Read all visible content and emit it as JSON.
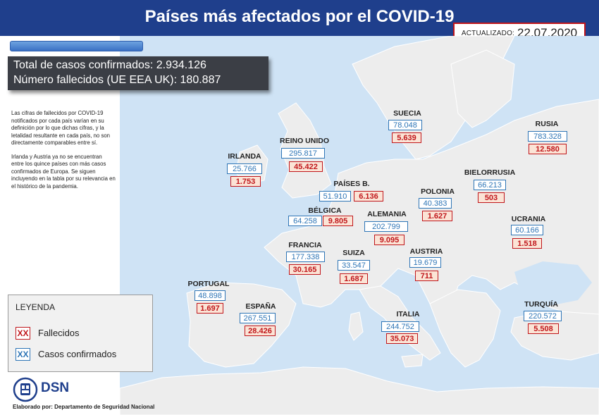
{
  "header": {
    "title": "Países más afectados por el COVID-19",
    "update_label": "ACTUALIZADO:",
    "update_date": "22.07.2020"
  },
  "totals": {
    "confirmed": "Total de casos confirmados: 2.934.126",
    "deaths": "Número fallecidos (UE EEA UK): 180.887"
  },
  "notes": {
    "p1": "Las cifras de fallecidos por COVID-19 notificados por cada país varían en su definición por lo que dichas cifras, y la letalidad resultante en cada país, no son directamente comparables entre sí.",
    "p2": "Irlanda y Austria ya no se encuentran entre los quince países con más casos confirmados de Europa. Se siguen incluyendo en la tabla por su relevancia en el histórico de la pandemia."
  },
  "legend": {
    "title": "LEYENDA",
    "deaths_symbol": "XX",
    "deaths_label": "Fallecidos",
    "cases_symbol": "XX",
    "cases_label": "Casos confirmados"
  },
  "footer": {
    "logo_text": "DSN",
    "credit": "Elaborado por: Departamento de Seguridad Nacional"
  },
  "colors": {
    "header": "#1f3f8c",
    "sea": "#cfe3f5",
    "land": "#ededed",
    "cases": "#2e75b6",
    "deaths": "#c0161b",
    "deaths_fill": "#fbe4d6",
    "totals_box": "#3b3e45"
  },
  "countries": {
    "irlanda": {
      "name": "IRLANDA",
      "cases": "25.766",
      "deaths": "1.753"
    },
    "reino_unido": {
      "name": "REINO UNIDO",
      "cases": "295.817",
      "deaths": "45.422"
    },
    "paises_b": {
      "name": "PAÍSES B.",
      "cases": "51.910",
      "deaths": "6.136"
    },
    "belgica": {
      "name": "BÉLGICA",
      "cases": "64.258",
      "deaths": "9.805"
    },
    "francia": {
      "name": "FRANCIA",
      "cases": "177.338",
      "deaths": "30.165"
    },
    "portugal": {
      "name": "PORTUGAL",
      "cases": "48.898",
      "deaths": "1.697"
    },
    "espana": {
      "name": "ESPAÑA",
      "cases": "267.551",
      "deaths": "28.426"
    },
    "suiza": {
      "name": "SUIZA",
      "cases": "33.547",
      "deaths": "1.687"
    },
    "alemania": {
      "name": "ALEMANIA",
      "cases": "202.799",
      "deaths": "9.095"
    },
    "italia": {
      "name": "ITALIA",
      "cases": "244.752",
      "deaths": "35.073"
    },
    "austria": {
      "name": "AUSTRIA",
      "cases": "19.679",
      "deaths": "711"
    },
    "suecia": {
      "name": "SUECIA",
      "cases": "78.048",
      "deaths": "5.639"
    },
    "polonia": {
      "name": "POLONIA",
      "cases": "40.383",
      "deaths": "1.627"
    },
    "bielorrusia": {
      "name": "BIELORRUSIA",
      "cases": "66.213",
      "deaths": "503"
    },
    "rusia": {
      "name": "RUSIA",
      "cases": "783.328",
      "deaths": "12.580"
    },
    "ucrania": {
      "name": "UCRANIA",
      "cases": "60.166",
      "deaths": "1.518"
    },
    "turquia": {
      "name": "TURQUÍA",
      "cases": "220.572",
      "deaths": "5.508"
    }
  }
}
